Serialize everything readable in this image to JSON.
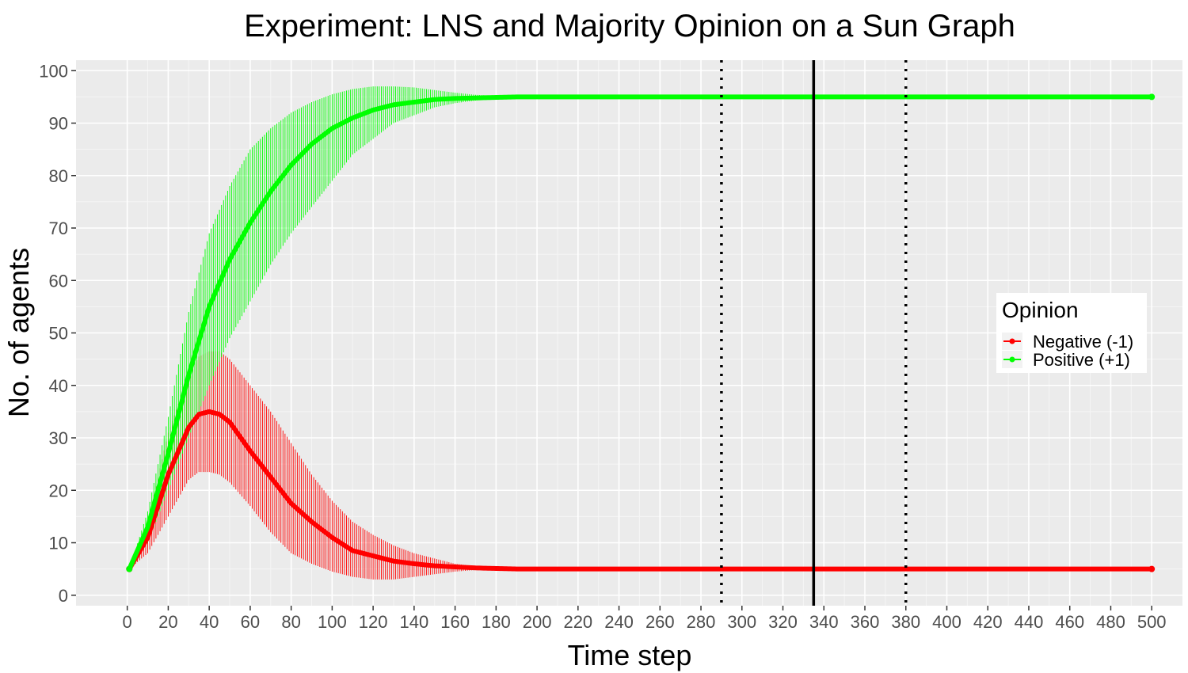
{
  "chart_data": {
    "type": "line",
    "title": "Experiment: LNS and Majority Opinion on a Sun Graph",
    "xlabel": "Time step",
    "ylabel": "No. of agents",
    "xlim": [
      -25,
      515
    ],
    "ylim": [
      -2,
      102
    ],
    "x_ticks": [
      0,
      20,
      40,
      60,
      80,
      100,
      120,
      140,
      160,
      180,
      200,
      220,
      240,
      260,
      280,
      300,
      320,
      340,
      360,
      380,
      400,
      420,
      440,
      460,
      480,
      500
    ],
    "y_ticks": [
      0,
      10,
      20,
      30,
      40,
      50,
      60,
      70,
      80,
      90,
      100
    ],
    "grid": true,
    "legend": {
      "title": "Opinion",
      "position": "right",
      "entries": [
        {
          "label": "Negative (-1)",
          "color": "#ff0000"
        },
        {
          "label": "Positive (+1)",
          "color": "#00ff00"
        }
      ]
    },
    "series": [
      {
        "name": "Negative (-1)",
        "color": "#ff0000",
        "x": [
          1,
          10,
          20,
          30,
          35,
          40,
          45,
          50,
          60,
          70,
          80,
          90,
          100,
          110,
          120,
          130,
          140,
          150,
          160,
          170,
          180,
          190,
          200,
          250,
          300,
          350,
          400,
          450,
          500
        ],
        "mean": [
          5,
          11,
          23,
          32,
          34.5,
          35,
          34.5,
          33,
          27.5,
          22.5,
          17.5,
          14,
          11,
          8.5,
          7.5,
          6.5,
          6,
          5.6,
          5.4,
          5.2,
          5.1,
          5,
          5,
          5,
          5,
          5,
          5,
          5,
          5
        ],
        "lower": [
          5,
          8,
          15,
          22,
          23.5,
          23.5,
          23,
          21.5,
          17,
          12,
          8,
          6,
          4.5,
          3.5,
          3,
          3,
          3.5,
          4,
          4.5,
          4.8,
          5,
          5,
          5,
          5,
          5,
          5,
          5,
          5,
          5
        ],
        "upper": [
          5,
          14,
          31,
          42,
          45.5,
          46.5,
          46.5,
          45,
          40,
          35,
          29,
          23,
          18,
          14,
          11.5,
          9.5,
          8,
          7,
          6,
          5.5,
          5.2,
          5.1,
          5,
          5,
          5,
          5,
          5,
          5,
          5
        ]
      },
      {
        "name": "Positive (+1)",
        "color": "#00ff00",
        "x": [
          1,
          10,
          20,
          30,
          40,
          50,
          60,
          70,
          80,
          90,
          100,
          110,
          120,
          130,
          140,
          150,
          160,
          170,
          180,
          190,
          200,
          250,
          300,
          350,
          400,
          450,
          500
        ],
        "mean": [
          5,
          13,
          27,
          42,
          55,
          64,
          71,
          77,
          82,
          86,
          89,
          91,
          92.5,
          93.5,
          94,
          94.5,
          94.7,
          94.8,
          94.9,
          95,
          95,
          95,
          95,
          95,
          95,
          95,
          95
        ],
        "lower": [
          5,
          10,
          20,
          30,
          40,
          49,
          56,
          63,
          69,
          74,
          79,
          84,
          87,
          90,
          91.5,
          93,
          93.8,
          94.3,
          94.7,
          94.9,
          95,
          95,
          95,
          95,
          95,
          95,
          95
        ],
        "upper": [
          5,
          16,
          34,
          54,
          69,
          78,
          85,
          89,
          92,
          94,
          95.5,
          96.5,
          97,
          97,
          96.8,
          96.3,
          95.8,
          95.4,
          95.2,
          95.1,
          95,
          95,
          95,
          95,
          95,
          95,
          95
        ]
      }
    ],
    "reference_lines": [
      {
        "x": 290,
        "style": "dotted"
      },
      {
        "x": 335,
        "style": "solid"
      },
      {
        "x": 380,
        "style": "dotted"
      }
    ]
  }
}
